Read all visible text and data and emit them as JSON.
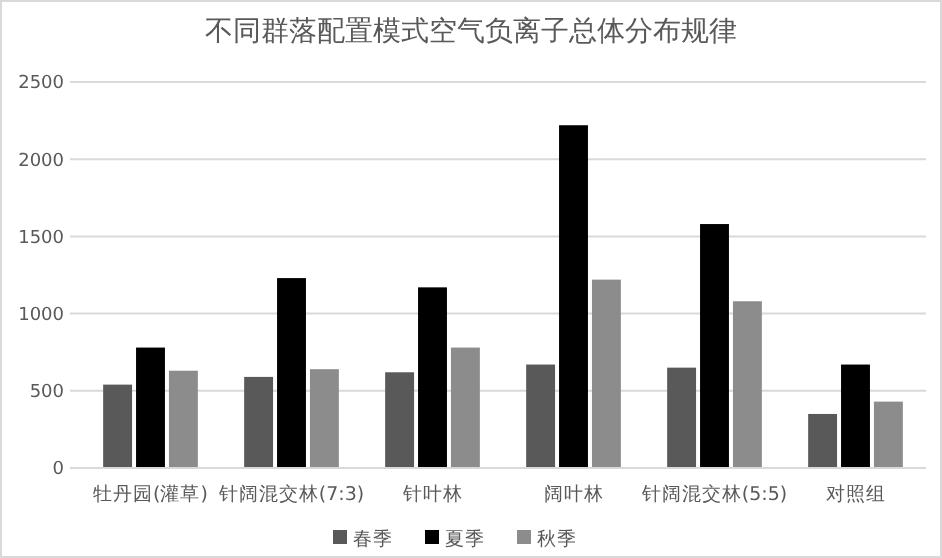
{
  "chart_data": {
    "type": "bar",
    "title": "不同群落配置模式空气负离子总体分布规律",
    "categories": [
      "牡丹园(灌草)",
      "针阔混交林(7:3)",
      "针叶林",
      "阔叶林",
      "针阔混交林(5:5)",
      "对照组"
    ],
    "series": [
      {
        "name": "春季",
        "color": "#595959",
        "values": [
          540,
          590,
          620,
          670,
          650,
          350
        ]
      },
      {
        "name": "夏季",
        "color": "#000000",
        "values": [
          780,
          1230,
          1170,
          2220,
          1580,
          670
        ]
      },
      {
        "name": "秋季",
        "color": "#8c8c8c",
        "values": [
          630,
          640,
          780,
          1220,
          1080,
          430
        ]
      }
    ],
    "ylim": [
      0,
      2500
    ],
    "yticks": [
      0,
      500,
      1000,
      1500,
      2000,
      2500
    ],
    "grid": "y",
    "legend": "bottom"
  }
}
